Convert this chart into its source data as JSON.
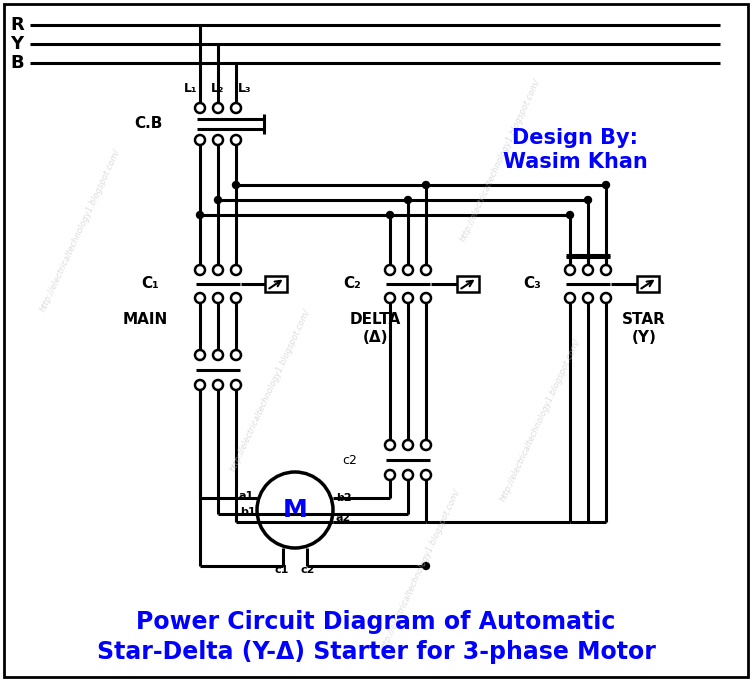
{
  "title_line1": "Power Circuit Diagram of Automatic",
  "title_line2": "Star-Delta (Y-Δ) Starter for 3-phase Motor",
  "title_color": "blue",
  "title_fontsize": 17,
  "design_by_line1": "Design By:",
  "design_by_line2": "Wasim Khan",
  "design_color": "blue",
  "design_fontsize": 15,
  "bg_color": "white",
  "line_color": "black",
  "fig_width": 7.52,
  "fig_height": 6.81,
  "R_label": "R",
  "Y_label": "Y",
  "B_label": "B",
  "L1_label": "L₁",
  "L2_label": "L₂",
  "L3_label": "L₃",
  "CB_label": "C.B",
  "C1_label": "C₁",
  "MAIN_label": "MAIN",
  "C2_label": "C₂",
  "DELTA_label": "DELTA",
  "DELTA_sym": "(Δ)",
  "C3_label": "C₃",
  "STAR_label": "STAR",
  "STAR_sym": "(Y)",
  "c2_label": "c2",
  "a1_label": "a1",
  "b2_label": "b2",
  "b1_label": "b1",
  "a2_label": "a2",
  "c1_label": "c1",
  "c2m_label": "c2",
  "M_label": "M",
  "wm1": [
    80,
    230,
    65
  ],
  "wm2": [
    270,
    390,
    65
  ],
  "wm3": [
    500,
    160,
    65
  ],
  "wm4": [
    540,
    420,
    65
  ],
  "wm5": [
    420,
    570,
    65
  ],
  "watermark_text": "http://electricaltechnology1.blogspot.com/"
}
